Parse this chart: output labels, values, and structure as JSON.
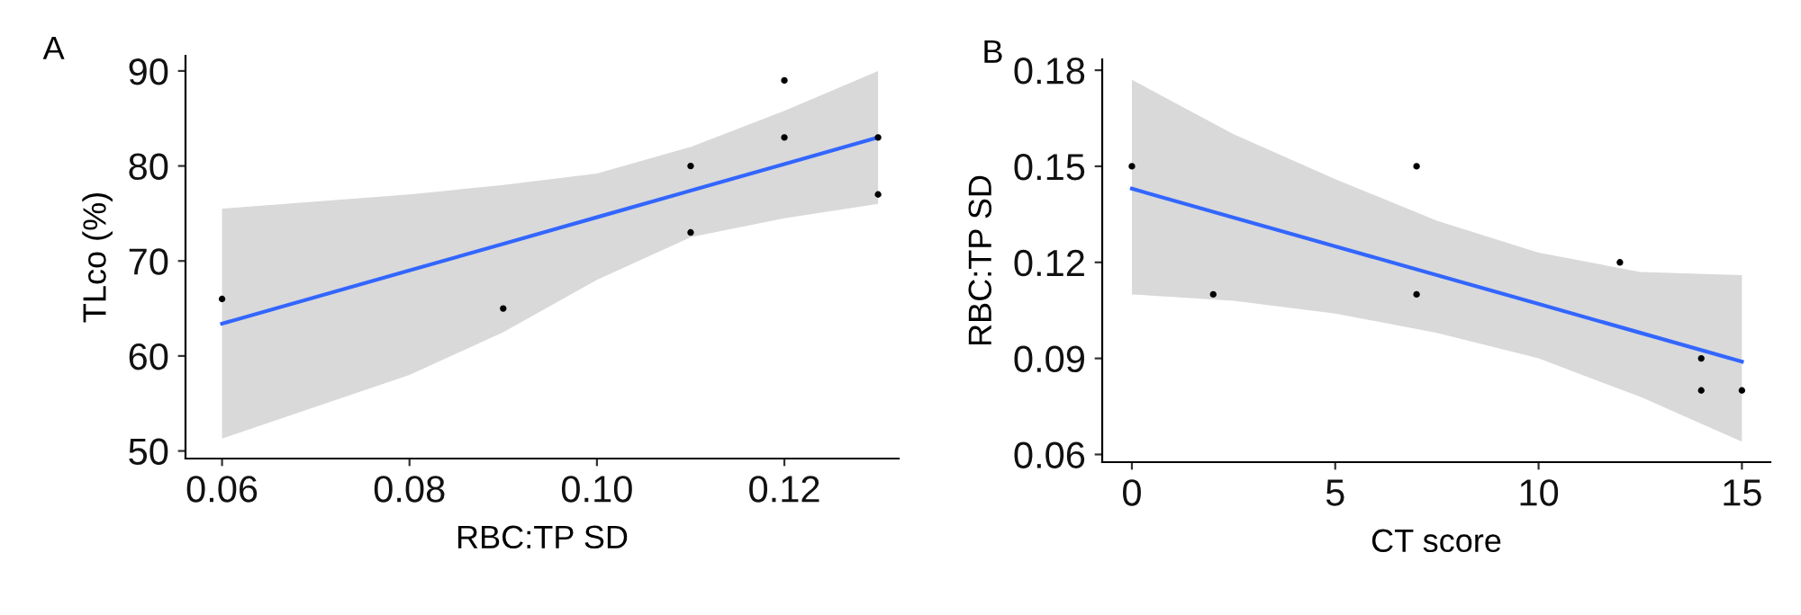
{
  "chart_data": [
    {
      "type": "scatter",
      "annotations": [
        "A"
      ],
      "xlabel": "RBC:TP SD",
      "ylabel": "TLco (%)",
      "xlim": [
        0.0561,
        0.1322
      ],
      "xticks": [
        {
          "value": 0.06,
          "label": "0.06"
        },
        {
          "value": 0.08,
          "label": "0.08"
        },
        {
          "value": 0.1,
          "label": "0.10"
        },
        {
          "value": 0.12,
          "label": "0.12"
        }
      ],
      "ylim": [
        49.2,
        91.6
      ],
      "yticks": [
        50,
        60,
        70,
        80,
        90
      ],
      "grid": false,
      "legend": false,
      "series": [
        {
          "color": "#000000",
          "marker": "circle",
          "x": [
            0.06,
            0.09,
            0.11,
            0.11,
            0.12,
            0.12,
            0.13,
            0.13
          ],
          "values": [
            66,
            65,
            80,
            73,
            89,
            83,
            83,
            77
          ]
        },
        {
          "type": "line",
          "color": "#3366ff",
          "marker": "none",
          "line_style": "solid",
          "x": [
            0.06,
            0.08,
            0.09,
            0.1,
            0.11,
            0.12,
            0.13
          ],
          "values": [
            63.4,
            69.0,
            71.8,
            74.6,
            77.4,
            80.2,
            83.0
          ],
          "lower": [
            51.3,
            58,
            62.5,
            68,
            72.5,
            74.5,
            76
          ],
          "upper": [
            75.5,
            77,
            78,
            79.2,
            82,
            85.8,
            90
          ]
        }
      ]
    },
    {
      "type": "scatter",
      "annotations": [
        "B"
      ],
      "xlabel": "CT score",
      "ylabel": "RBC:TP SD",
      "xlim": [
        -0.73,
        15.7
      ],
      "xticks": [
        0,
        5,
        10,
        15
      ],
      "ylim": [
        0.0576,
        0.1834
      ],
      "yticks": [
        {
          "value": 0.06,
          "label": "0.06"
        },
        {
          "value": 0.09,
          "label": "0.09"
        },
        {
          "value": 0.12,
          "label": "0.12"
        },
        {
          "value": 0.15,
          "label": "0.15"
        },
        {
          "value": 0.18,
          "label": "0.18"
        }
      ],
      "grid": false,
      "legend": false,
      "series": [
        {
          "color": "#000000",
          "marker": "circle",
          "x": [
            0,
            2,
            7,
            7,
            12,
            14,
            14,
            15
          ],
          "values": [
            0.15,
            0.11,
            0.15,
            0.11,
            0.12,
            0.09,
            0.08,
            0.08
          ]
        },
        {
          "type": "line",
          "color": "#3366ff",
          "marker": "none",
          "line_style": "solid",
          "x": [
            0,
            2.5,
            5,
            7.5,
            10,
            12.5,
            15
          ],
          "values": [
            0.143,
            0.134,
            0.125,
            0.116,
            0.107,
            0.098,
            0.089
          ],
          "lower": [
            0.11,
            0.108,
            0.104,
            0.098,
            0.09,
            0.078,
            0.064
          ],
          "upper": [
            0.177,
            0.16,
            0.146,
            0.133,
            0.123,
            0.117,
            0.116
          ]
        }
      ]
    }
  ]
}
